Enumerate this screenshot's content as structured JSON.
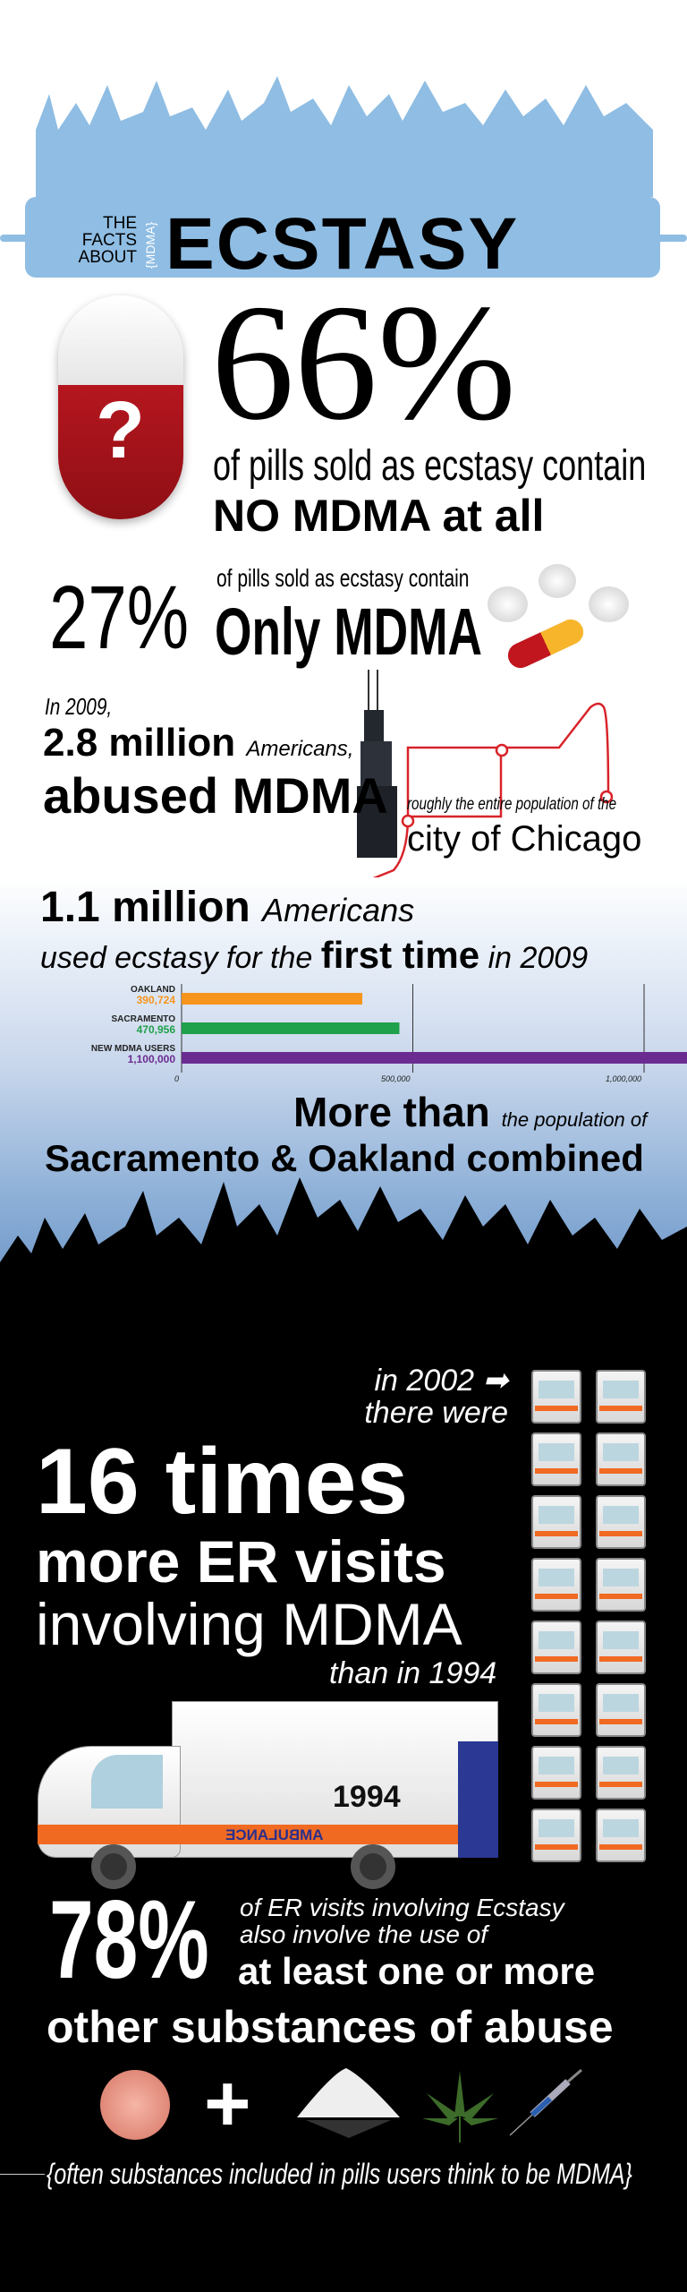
{
  "header": {
    "the": "THE",
    "facts": "FACTS",
    "about": "ABOUT",
    "mdma_tag": "{MDMA}",
    "title": "ECSTASY"
  },
  "stat_66": {
    "value": "66%",
    "line1": "of pills sold as ecstasy contain",
    "line2": "NO MDMA at all",
    "pill_mark": "?"
  },
  "stat_27": {
    "value": "27%",
    "line1": "of pills sold as ecstasy contain",
    "line2": "Only MDMA"
  },
  "chicago": {
    "year": "In 2009,",
    "number": "2.8 million",
    "americans": "Americans,",
    "abused": "abused MDMA",
    "roughly": "roughly the entire population of the",
    "city": "city of Chicago"
  },
  "first_time": {
    "number": "1.1 million",
    "americans": "Americans",
    "used": "used ecstasy for the",
    "first": "first time",
    "year": "in 2009"
  },
  "chart_data": {
    "type": "bar",
    "orientation": "horizontal",
    "categories": [
      "Oakland",
      "Sacramento",
      "New MDMA users"
    ],
    "value_labels": [
      "390,724",
      "470,956",
      "1,100,000"
    ],
    "values": [
      390724,
      470956,
      1100000
    ],
    "colors": [
      "#f7941d",
      "#1fa04a",
      "#6a2c91"
    ],
    "xlim": [
      0,
      1100000
    ],
    "ticks": [
      0,
      500000,
      1000000
    ],
    "tick_labels": [
      "0",
      "500,000",
      "1,000,000"
    ],
    "grid": true
  },
  "more_than": {
    "big": "More than",
    "small": "the population of",
    "line2": "Sacramento & Oakland combined"
  },
  "er": {
    "in2002": "in 2002",
    "there_were": "there were",
    "times": "16 times",
    "more": "more ER visits",
    "involving": "involving MDMA",
    "than": "than in 1994",
    "ambulance_year": "1994",
    "ambulance_label": "AMBULANCE",
    "icon_count": 16
  },
  "stat_78": {
    "value": "78%",
    "line1": "of ER visits involving Ecstasy",
    "line2": "also involve the use of",
    "line3": "at least one or more",
    "line4": "other substances of abuse"
  },
  "footnote": "{often substances included in pills users think to be MDMA}",
  "colors": {
    "header_blue": "#8fbde3",
    "pill_red": "#b5161e",
    "route_red": "#d8232a"
  }
}
